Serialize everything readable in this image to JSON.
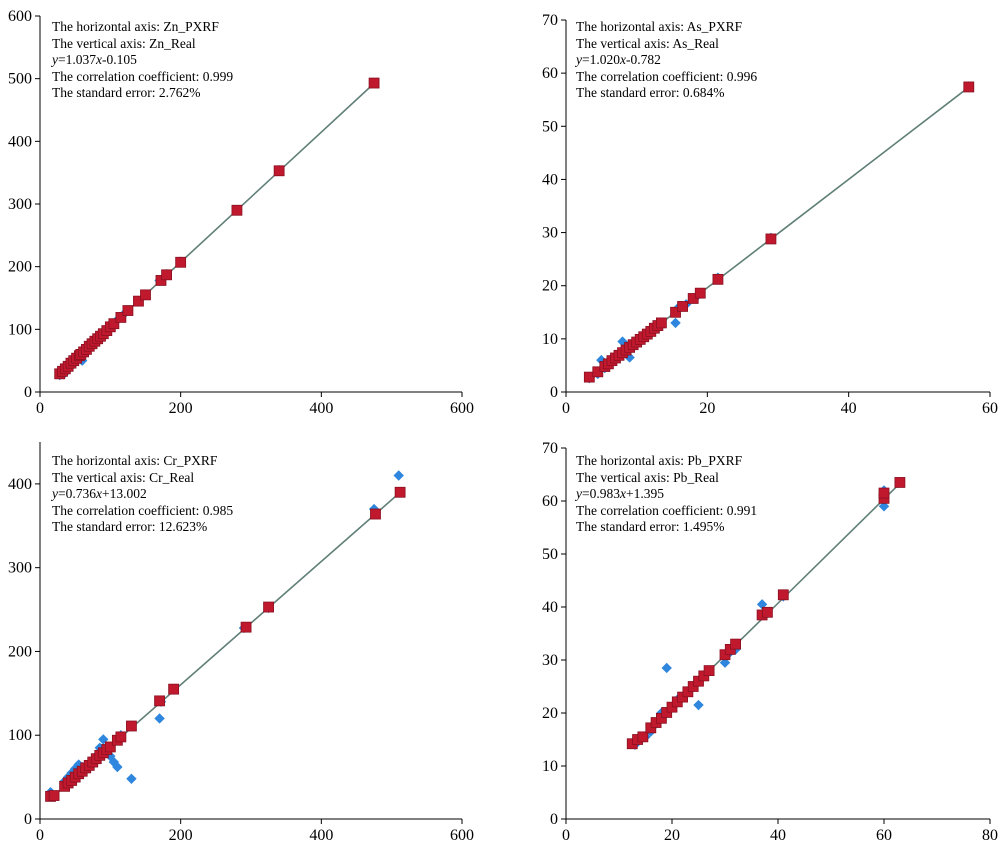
{
  "chart_data": [
    {
      "type": "scatter",
      "annotations": {
        "h_axis": "The horizontal axis: Zn_PXRF",
        "v_axis": "The vertical axis: Zn_Real",
        "eq_y": "y",
        "eq_mid": "=1.037",
        "eq_x": "x",
        "eq_end": "-0.105",
        "corr": "The correlation coefficient: 0.999",
        "stderr": "The standard error: 2.762%"
      },
      "xlim": [
        0,
        600
      ],
      "ylim": [
        0,
        600
      ],
      "xticks": [
        "0",
        "200",
        "400",
        "600"
      ],
      "yticks": [
        "0",
        "100",
        "200",
        "300",
        "400",
        "500",
        "600"
      ],
      "fit": {
        "slope": 1.037,
        "intercept": -0.105,
        "x_range": [
          28,
          475
        ]
      },
      "series": [
        {
          "marker": "diamond",
          "color": "#2e86de",
          "points": [
            [
              28,
              27
            ],
            [
              35,
              30
            ],
            [
              40,
              38
            ],
            [
              45,
              44
            ],
            [
              50,
              47
            ],
            [
              55,
              52
            ],
            [
              60,
              50
            ],
            [
              62,
              60
            ],
            [
              65,
              66
            ],
            [
              70,
              70
            ],
            [
              75,
              78
            ],
            [
              80,
              83
            ],
            [
              85,
              88
            ],
            [
              90,
              92
            ],
            [
              95,
              99
            ],
            [
              100,
              102
            ],
            [
              110,
              115
            ],
            [
              120,
              125
            ],
            [
              140,
              145
            ],
            [
              150,
              155
            ],
            [
              170,
              178
            ],
            [
              180,
              188
            ],
            [
              200,
              208
            ],
            [
              280,
              290
            ],
            [
              340,
              354
            ],
            [
              475,
              493
            ]
          ]
        },
        {
          "marker": "square",
          "color": "#c0192e",
          "points": [
            [
              28,
              29
            ],
            [
              32,
              33
            ],
            [
              36,
              37
            ],
            [
              40,
              41
            ],
            [
              44,
              46
            ],
            [
              48,
              50
            ],
            [
              52,
              54
            ],
            [
              56,
              58
            ],
            [
              58,
              60
            ],
            [
              62,
              64
            ],
            [
              66,
              68
            ],
            [
              70,
              73
            ],
            [
              74,
              77
            ],
            [
              78,
              81
            ],
            [
              82,
              85
            ],
            [
              86,
              89
            ],
            [
              90,
              93
            ],
            [
              95,
              98
            ],
            [
              100,
              104
            ],
            [
              105,
              109
            ],
            [
              115,
              119
            ],
            [
              125,
              130
            ],
            [
              140,
              145
            ],
            [
              150,
              155
            ],
            [
              172,
              178
            ],
            [
              180,
              187
            ],
            [
              200,
              207
            ],
            [
              280,
              290
            ],
            [
              340,
              353
            ],
            [
              475,
              493
            ]
          ]
        }
      ]
    },
    {
      "type": "scatter",
      "annotations": {
        "h_axis": "The horizontal axis: As_PXRF",
        "v_axis": "The vertical axis: As_Real",
        "eq_y": "y",
        "eq_mid": "=1.020",
        "eq_x": "x",
        "eq_end": "-0.782",
        "corr": "The correlation coefficient: 0.996",
        "stderr": "The standard error: 0.684%"
      },
      "xlim": [
        0,
        60
      ],
      "ylim": [
        0,
        70
      ],
      "xticks": [
        "0",
        "20",
        "40",
        "60"
      ],
      "yticks": [
        "0",
        "10",
        "20",
        "30",
        "40",
        "50",
        "60",
        "70"
      ],
      "fit": {
        "slope": 1.02,
        "intercept": -0.782,
        "x_range": [
          3.3,
          57
        ]
      },
      "series": [
        {
          "marker": "diamond",
          "color": "#2e86de",
          "points": [
            [
              3.3,
              2.6
            ],
            [
              4.5,
              3.4
            ],
            [
              5,
              6
            ],
            [
              5.5,
              4.5
            ],
            [
              6,
              5
            ],
            [
              6.5,
              6
            ],
            [
              7,
              6.5
            ],
            [
              7.5,
              7
            ],
            [
              8,
              9.5
            ],
            [
              8.5,
              7.5
            ],
            [
              9,
              6.5
            ],
            [
              9.5,
              8.5
            ],
            [
              10,
              9
            ],
            [
              11,
              10
            ],
            [
              12,
              11
            ],
            [
              13,
              12
            ],
            [
              15.5,
              13
            ],
            [
              16,
              16
            ],
            [
              17,
              16.5
            ],
            [
              18.5,
              18
            ],
            [
              21.5,
              21.5
            ],
            [
              29,
              29
            ],
            [
              57,
              57.5
            ]
          ]
        },
        {
          "marker": "square",
          "color": "#c0192e",
          "points": [
            [
              3.3,
              2.8
            ],
            [
              4.5,
              3.8
            ],
            [
              5.5,
              4.8
            ],
            [
              6,
              5.3
            ],
            [
              6.5,
              5.9
            ],
            [
              7,
              6.4
            ],
            [
              7.5,
              6.9
            ],
            [
              8,
              7.4
            ],
            [
              8.5,
              7.9
            ],
            [
              9,
              8.4
            ],
            [
              9.5,
              8.9
            ],
            [
              10,
              9.4
            ],
            [
              10.5,
              9.9
            ],
            [
              11,
              10.4
            ],
            [
              11.5,
              10.9
            ],
            [
              12,
              11.4
            ],
            [
              12.5,
              12
            ],
            [
              13,
              12.5
            ],
            [
              13.5,
              13
            ],
            [
              15.5,
              15
            ],
            [
              16.5,
              16.1
            ],
            [
              18,
              17.6
            ],
            [
              19,
              18.6
            ],
            [
              21.5,
              21.2
            ],
            [
              29,
              28.8
            ],
            [
              57,
              57.4
            ]
          ]
        }
      ]
    },
    {
      "type": "scatter",
      "annotations": {
        "h_axis": "The horizontal axis: Cr_PXRF",
        "v_axis": "The vertical axis: Cr_Real",
        "eq_y": "y",
        "eq_mid": "=0.736",
        "eq_x": "x",
        "eq_end": "+13.002",
        "corr": "The correlation coefficient: 0.985",
        "stderr": "The standard error: 12.623%"
      },
      "xlim": [
        0,
        600
      ],
      "ylim": [
        0,
        450
      ],
      "xticks": [
        "0",
        "200",
        "400",
        "600"
      ],
      "yticks": [
        "0",
        "100",
        "200",
        "300",
        "400"
      ],
      "fit": {
        "slope": 0.736,
        "intercept": 13.002,
        "x_range": [
          15,
          512
        ]
      },
      "series": [
        {
          "marker": "diamond",
          "color": "#2e86de",
          "points": [
            [
              15,
              32
            ],
            [
              18,
              29
            ],
            [
              35,
              45
            ],
            [
              40,
              50
            ],
            [
              45,
              55
            ],
            [
              50,
              60
            ],
            [
              55,
              65
            ],
            [
              60,
              62
            ],
            [
              65,
              60
            ],
            [
              70,
              65
            ],
            [
              75,
              70
            ],
            [
              80,
              75
            ],
            [
              85,
              85
            ],
            [
              90,
              95
            ],
            [
              95,
              80
            ],
            [
              100,
              75
            ],
            [
              105,
              68
            ],
            [
              110,
              62
            ],
            [
              115,
              100
            ],
            [
              130,
              48
            ],
            [
              170,
              120
            ],
            [
              172,
              140
            ],
            [
              190,
              155
            ],
            [
              290,
              228
            ],
            [
              325,
              252
            ],
            [
              475,
              370
            ],
            [
              510,
              410
            ]
          ]
        },
        {
          "marker": "square",
          "color": "#c0192e",
          "points": [
            [
              15,
              27
            ],
            [
              20,
              28
            ],
            [
              35,
              39
            ],
            [
              40,
              43
            ],
            [
              45,
              46
            ],
            [
              50,
              50
            ],
            [
              55,
              54
            ],
            [
              60,
              57
            ],
            [
              65,
              61
            ],
            [
              70,
              64
            ],
            [
              75,
              68
            ],
            [
              80,
              72
            ],
            [
              85,
              76
            ],
            [
              90,
              79
            ],
            [
              95,
              83
            ],
            [
              100,
              86
            ],
            [
              110,
              94
            ],
            [
              115,
              98
            ],
            [
              130,
              111
            ],
            [
              170,
              141
            ],
            [
              190,
              155
            ],
            [
              293,
              229
            ],
            [
              325,
              253
            ],
            [
              477,
              364
            ],
            [
              512,
              390
            ]
          ]
        }
      ]
    },
    {
      "type": "scatter",
      "annotations": {
        "h_axis": "The horizontal axis: Pb_PXRF",
        "v_axis": "The vertical axis: Pb_Real",
        "eq_y": "y",
        "eq_mid": "=0.983",
        "eq_x": "x",
        "eq_end": "+1.395",
        "corr": "The correlation coefficient: 0.991",
        "stderr": "The standard error: 1.495%"
      },
      "xlim": [
        0,
        80
      ],
      "ylim": [
        0,
        70
      ],
      "xticks": [
        "0",
        "20",
        "40",
        "60",
        "80"
      ],
      "yticks": [
        "0",
        "10",
        "20",
        "30",
        "40",
        "50",
        "60",
        "70"
      ],
      "fit": {
        "slope": 0.983,
        "intercept": 1.395,
        "x_range": [
          12.5,
          63
        ]
      },
      "series": [
        {
          "marker": "diamond",
          "color": "#2e86de",
          "points": [
            [
              13,
              14
            ],
            [
              14,
              15
            ],
            [
              15,
              15.5
            ],
            [
              16,
              16.5
            ],
            [
              17,
              18
            ],
            [
              18,
              20
            ],
            [
              19,
              28.5
            ],
            [
              20,
              21
            ],
            [
              21,
              22.5
            ],
            [
              22,
              23
            ],
            [
              23,
              24
            ],
            [
              24,
              25
            ],
            [
              25,
              21.5
            ],
            [
              26,
              27
            ],
            [
              27,
              28
            ],
            [
              30,
              29.5
            ],
            [
              31,
              31.5
            ],
            [
              32,
              32
            ],
            [
              37,
              40.5
            ],
            [
              38,
              39
            ],
            [
              41,
              42
            ],
            [
              60,
              62
            ],
            [
              60,
              59
            ]
          ]
        },
        {
          "marker": "square",
          "color": "#c0192e",
          "points": [
            [
              12.5,
              14.2
            ],
            [
              13.5,
              15
            ],
            [
              14.5,
              15.5
            ],
            [
              16,
              17.2
            ],
            [
              17,
              18.2
            ],
            [
              18,
              19
            ],
            [
              19,
              20.1
            ],
            [
              20,
              21.1
            ],
            [
              21,
              22.1
            ],
            [
              22,
              23
            ],
            [
              23,
              24
            ],
            [
              24,
              25
            ],
            [
              25,
              26
            ],
            [
              26,
              27
            ],
            [
              27,
              28
            ],
            [
              30,
              31
            ],
            [
              31,
              32
            ],
            [
              32,
              33
            ],
            [
              37,
              38.5
            ],
            [
              38,
              39
            ],
            [
              41,
              42.3
            ],
            [
              60,
              60.5
            ],
            [
              60,
              61.5
            ],
            [
              63,
              63.5
            ]
          ]
        }
      ]
    }
  ]
}
